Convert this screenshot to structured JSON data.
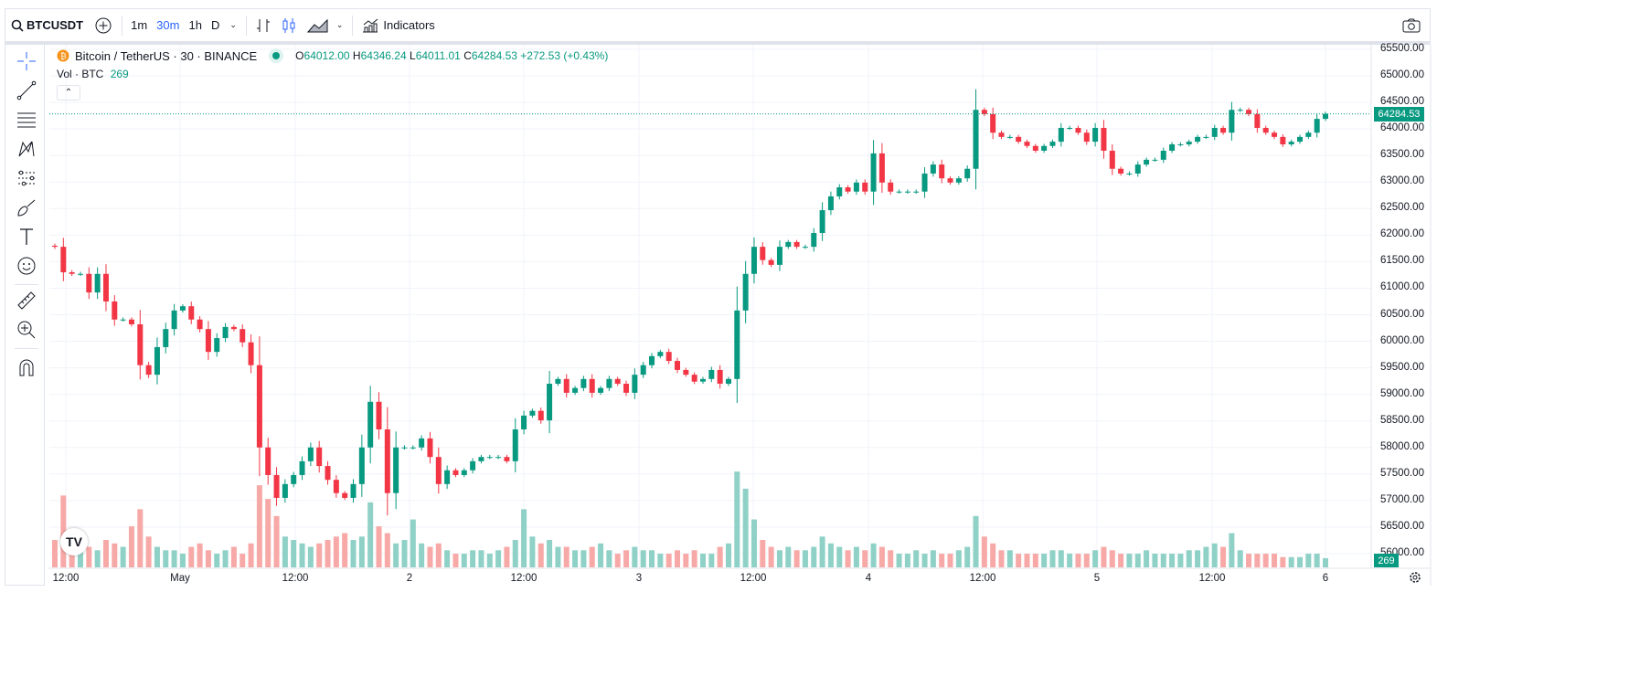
{
  "toolbar": {
    "symbol": "BTCUSDT",
    "timeframes": [
      "1m",
      "30m",
      "1h",
      "D"
    ],
    "active_timeframe": "30m",
    "indicators_label": "Indicators"
  },
  "legend": {
    "title": "Bitcoin / TetherUS · 30 · BINANCE",
    "open_label": "O",
    "open": "64012.00",
    "high_label": "H",
    "high": "64346.24",
    "low_label": "L",
    "low": "64011.01",
    "close_label": "C",
    "close": "64284.53",
    "change": "+272.53 (+0.43%)",
    "volume_label": "Vol · BTC",
    "volume": "269"
  },
  "colors": {
    "up": "#089981",
    "down": "#f23645",
    "up_volume": "#8fd1c6",
    "down_volume": "#f7a9a7",
    "accent": "#2962ff"
  },
  "chart_data": {
    "type": "candlestick",
    "interval": "30",
    "ylim": [
      55800,
      65700
    ],
    "y_ticks": [
      "65500.00",
      "65000.00",
      "64500.00",
      "64000.00",
      "63500.00",
      "63000.00",
      "62500.00",
      "62000.00",
      "61500.00",
      "61000.00",
      "60500.00",
      "60000.00",
      "59500.00",
      "59000.00",
      "58500.00",
      "58000.00",
      "57500.00",
      "57000.00",
      "56500.00",
      "56000.00"
    ],
    "x_ticks": [
      "12:00",
      "May",
      "12:00",
      "2",
      "12:00",
      "3",
      "12:00",
      "4",
      "12:00",
      "5",
      "12:00",
      "6"
    ],
    "first_open": 61800,
    "closes": [
      61780,
      61300,
      61270,
      61270,
      60920,
      61270,
      60750,
      60410,
      60410,
      60320,
      59550,
      59370,
      59890,
      60230,
      60580,
      60660,
      60410,
      60230,
      59800,
      60060,
      60270,
      60230,
      59980,
      59550,
      58000,
      57480,
      57050,
      57310,
      57480,
      57740,
      58000,
      57650,
      57390,
      57140,
      57050,
      57310,
      58000,
      58860,
      58340,
      57140,
      58000,
      58000,
      58000,
      58170,
      57820,
      57310,
      57570,
      57480,
      57570,
      57740,
      57820,
      57820,
      57820,
      57740,
      58340,
      58600,
      58690,
      58510,
      59200,
      59290,
      59030,
      59120,
      59290,
      59030,
      59120,
      59290,
      59200,
      59030,
      59370,
      59550,
      59720,
      59800,
      59630,
      59460,
      59370,
      59240,
      59290,
      59460,
      59200,
      59290,
      60580,
      61270,
      61780,
      61530,
      61440,
      61780,
      61870,
      61780,
      61780,
      62040,
      62470,
      62730,
      62900,
      62820,
      62990,
      62820,
      63540,
      62990,
      62820,
      62820,
      62820,
      62820,
      63160,
      63330,
      63070,
      62990,
      63070,
      63250,
      64360,
      64280,
      63930,
      63850,
      63850,
      63760,
      63680,
      63590,
      63680,
      63760,
      64020,
      64020,
      63930,
      63760,
      64020,
      63590,
      63250,
      63160,
      63160,
      63330,
      63420,
      63420,
      63590,
      63710,
      63710,
      63760,
      63850,
      63850,
      64020,
      63930,
      64360,
      64360,
      64280,
      64020,
      63930,
      63850,
      63710,
      63760,
      63850,
      63930,
      64190,
      64284.53
    ],
    "volumes": [
      800,
      2100,
      700,
      900,
      600,
      500,
      800,
      700,
      600,
      1200,
      1700,
      900,
      600,
      500,
      500,
      400,
      600,
      700,
      500,
      400,
      500,
      600,
      400,
      700,
      2400,
      2000,
      1500,
      900,
      800,
      700,
      600,
      700,
      800,
      900,
      1000,
      800,
      900,
      1900,
      1200,
      1000,
      700,
      800,
      1400,
      700,
      600,
      700,
      500,
      400,
      400,
      500,
      500,
      400,
      500,
      600,
      800,
      1700,
      900,
      700,
      800,
      600,
      600,
      500,
      500,
      600,
      700,
      500,
      400,
      500,
      600,
      500,
      500,
      400,
      400,
      500,
      400,
      500,
      400,
      400,
      600,
      700,
      2800,
      2300,
      1400,
      800,
      600,
      500,
      600,
      500,
      500,
      600,
      900,
      700,
      600,
      500,
      600,
      500,
      700,
      600,
      500,
      400,
      400,
      500,
      400,
      500,
      400,
      400,
      500,
      600,
      1500,
      900,
      700,
      500,
      500,
      400,
      400,
      400,
      400,
      500,
      500,
      400,
      400,
      400,
      500,
      600,
      500,
      400,
      400,
      400,
      500,
      400,
      400,
      400,
      400,
      500,
      500,
      600,
      700,
      600,
      1000,
      500,
      400,
      400,
      400,
      400,
      300,
      300,
      300,
      400,
      400,
      269
    ],
    "last_price": "64284.53",
    "last_volume": "269"
  }
}
